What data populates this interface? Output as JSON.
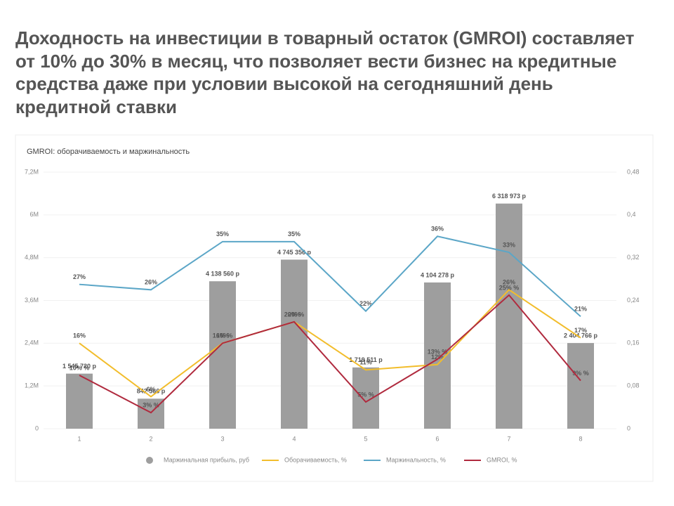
{
  "header": {
    "title": "Доходность на инвестиции в товарный остаток (GMROI) составляет от 10% до 30% в месяц, что позволяет вести бизнес на кредитные средства даже при условии высокой на сегодняшний день кредитной ставки"
  },
  "chart_data": {
    "type": "bar",
    "title": "GMROI: оборачиваемость и маржинальность",
    "categories": [
      "1",
      "2",
      "3",
      "4",
      "5",
      "6",
      "7",
      "8"
    ],
    "series": [
      {
        "name": "Маржинальная прибыль, руб",
        "type": "bar",
        "color": "#9e9e9e",
        "values": [
          1545720,
          842566,
          4138560,
          4745356,
          1719511,
          4104278,
          6318973,
          2404766
        ],
        "value_labels": [
          "1 545 720 р",
          "842 566 р",
          "4 138 560 р",
          "4 745 356 р",
          "1 719 511 р",
          "4 104 278 р",
          "6 318 973 р",
          "2 404 766 р"
        ]
      },
      {
        "name": "Оборачиваемость, %",
        "type": "line",
        "axis": "y2",
        "color": "#f2bd2c",
        "values": [
          0.16,
          0.06,
          0.16,
          0.2,
          0.11,
          0.12,
          0.26,
          0.17
        ],
        "value_labels": [
          "16%",
          "6%",
          "16%",
          "20%",
          "11%",
          "12%",
          "26%",
          "17%"
        ]
      },
      {
        "name": "Маржинальность, %",
        "type": "line",
        "axis": "y2",
        "color": "#5ba6c7",
        "values": [
          0.27,
          0.26,
          0.35,
          0.35,
          0.22,
          0.36,
          0.33,
          0.21
        ],
        "value_labels": [
          "27%",
          "26%",
          "35%",
          "35%",
          "22%",
          "36%",
          "33%",
          "21%"
        ]
      },
      {
        "name": "GMROI, %",
        "type": "line",
        "axis": "y2",
        "color": "#b02a3e",
        "values": [
          0.1,
          0.03,
          0.16,
          0.2,
          0.05,
          0.13,
          0.25,
          0.09
        ],
        "value_labels": [
          "10% %",
          "3% %",
          "16% %",
          "20% %",
          "5% %",
          "13% %",
          "25% %",
          "9% %"
        ]
      }
    ],
    "ylim": [
      0,
      7200000
    ],
    "yticks": [
      0,
      {
        "value": 1200000,
        "label": "1,2M"
      },
      {
        "value": 2400000,
        "label": "2,4M"
      },
      {
        "value": 3600000,
        "label": "3,6M"
      },
      {
        "value": 4800000,
        "label": "4,8M"
      },
      {
        "value": 6000000,
        "label": "6M"
      },
      {
        "value": 7200000,
        "label": "7,2M"
      }
    ],
    "y2lim": [
      0,
      0.48
    ],
    "y2ticks": [
      0,
      {
        "value": 0.08,
        "label": "0,08"
      },
      {
        "value": 0.16,
        "label": "0,16"
      },
      {
        "value": 0.24,
        "label": "0,24"
      },
      {
        "value": 0.32,
        "label": "0,32"
      },
      {
        "value": 0.4,
        "label": "0,4"
      },
      {
        "value": 0.48,
        "label": "0,48"
      }
    ],
    "grid": true
  }
}
